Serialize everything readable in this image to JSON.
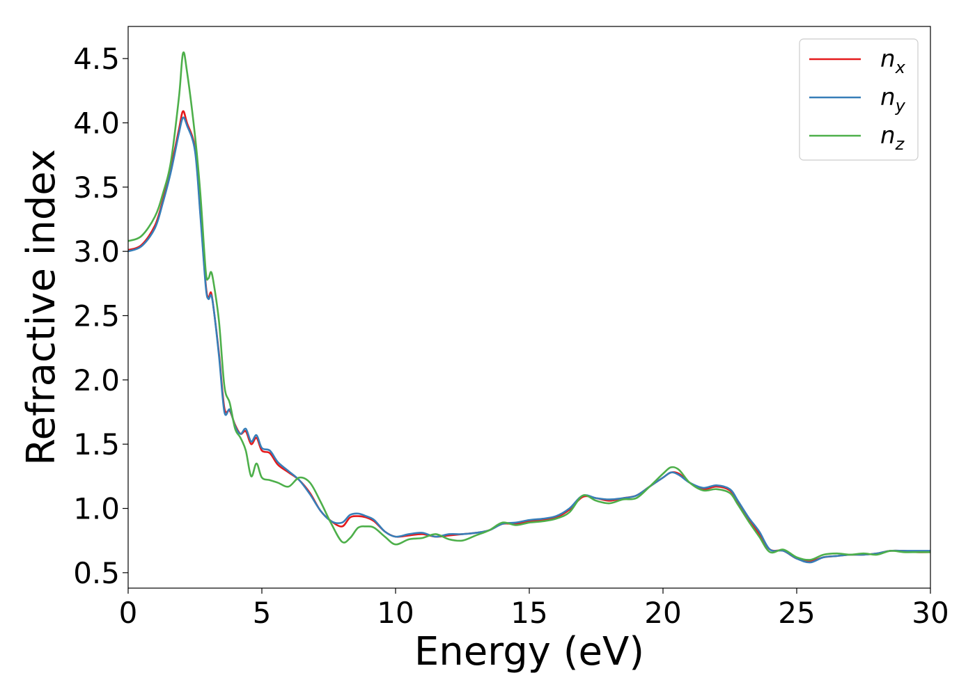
{
  "chart_data": {
    "type": "line",
    "xlabel": "Energy (eV)",
    "ylabel": "Refractive index",
    "xlim": [
      0,
      30
    ],
    "ylim": [
      0.38,
      4.75
    ],
    "xticks": [
      0,
      5,
      10,
      15,
      20,
      25,
      30
    ],
    "xtick_labels": [
      "0",
      "5",
      "10",
      "15",
      "20",
      "25",
      "30"
    ],
    "yticks": [
      0.5,
      1.0,
      1.5,
      2.0,
      2.5,
      3.0,
      3.5,
      4.0,
      4.5
    ],
    "ytick_labels": [
      "0.5",
      "1.0",
      "1.5",
      "2.0",
      "2.5",
      "3.0",
      "3.5",
      "4.0",
      "4.5"
    ],
    "grid": false,
    "legend_position": "top-right",
    "series": [
      {
        "name": "n_x",
        "label_main": "n",
        "label_sub": "x",
        "color": "#e41a1c",
        "x": [
          0,
          0.5,
          1.0,
          1.3,
          1.6,
          1.9,
          2.05,
          2.2,
          2.5,
          2.7,
          2.9,
          3.0,
          3.1,
          3.2,
          3.4,
          3.6,
          3.8,
          4.0,
          4.2,
          4.4,
          4.6,
          4.8,
          5.0,
          5.3,
          5.6,
          6.0,
          6.4,
          6.8,
          7.2,
          7.6,
          8.0,
          8.3,
          8.6,
          8.9,
          9.2,
          9.6,
          10.0,
          10.5,
          11.0,
          11.5,
          12.0,
          12.5,
          13.0,
          13.5,
          14.0,
          14.5,
          15.0,
          15.5,
          16.0,
          16.5,
          17.0,
          17.5,
          18.0,
          18.5,
          19.0,
          19.5,
          20.0,
          20.3,
          20.6,
          21.0,
          21.5,
          22.0,
          22.5,
          22.8,
          23.2,
          23.6,
          24.0,
          24.5,
          25.0,
          25.5,
          26.0,
          26.5,
          27.0,
          27.5,
          28.0,
          28.5,
          29.0,
          29.5,
          30.0
        ],
        "y": [
          3.01,
          3.05,
          3.2,
          3.4,
          3.65,
          3.95,
          4.09,
          4.0,
          3.8,
          3.3,
          2.75,
          2.64,
          2.68,
          2.55,
          2.2,
          1.78,
          1.76,
          1.65,
          1.58,
          1.6,
          1.5,
          1.55,
          1.45,
          1.43,
          1.34,
          1.28,
          1.22,
          1.12,
          0.98,
          0.9,
          0.86,
          0.93,
          0.94,
          0.93,
          0.9,
          0.82,
          0.78,
          0.79,
          0.8,
          0.78,
          0.79,
          0.8,
          0.81,
          0.83,
          0.88,
          0.88,
          0.9,
          0.91,
          0.93,
          0.99,
          1.09,
          1.08,
          1.06,
          1.08,
          1.1,
          1.17,
          1.24,
          1.28,
          1.27,
          1.2,
          1.15,
          1.17,
          1.14,
          1.05,
          0.92,
          0.8,
          0.68,
          0.67,
          0.61,
          0.59,
          0.62,
          0.63,
          0.64,
          0.64,
          0.65,
          0.67,
          0.67,
          0.66,
          0.66
        ]
      },
      {
        "name": "n_y",
        "label_main": "n",
        "label_sub": "y",
        "color": "#377eb8",
        "x": [
          0,
          0.5,
          1.0,
          1.3,
          1.6,
          1.9,
          2.05,
          2.2,
          2.5,
          2.7,
          2.9,
          3.0,
          3.1,
          3.2,
          3.4,
          3.6,
          3.8,
          4.0,
          4.2,
          4.4,
          4.6,
          4.8,
          5.0,
          5.3,
          5.6,
          6.0,
          6.4,
          6.8,
          7.2,
          7.6,
          8.0,
          8.3,
          8.6,
          8.9,
          9.2,
          9.6,
          10.0,
          10.5,
          11.0,
          11.5,
          12.0,
          12.5,
          13.0,
          13.5,
          14.0,
          14.5,
          15.0,
          15.5,
          16.0,
          16.5,
          17.0,
          17.5,
          18.0,
          18.5,
          19.0,
          19.5,
          20.0,
          20.3,
          20.6,
          21.0,
          21.5,
          22.0,
          22.5,
          22.8,
          23.2,
          23.6,
          24.0,
          24.5,
          25.0,
          25.5,
          26.0,
          26.5,
          27.0,
          27.5,
          28.0,
          28.5,
          29.0,
          29.5,
          30.0
        ],
        "y": [
          3.0,
          3.04,
          3.18,
          3.38,
          3.62,
          3.92,
          4.04,
          3.98,
          3.78,
          3.28,
          2.73,
          2.63,
          2.66,
          2.55,
          2.18,
          1.75,
          1.77,
          1.64,
          1.58,
          1.62,
          1.52,
          1.57,
          1.47,
          1.45,
          1.36,
          1.29,
          1.22,
          1.11,
          0.98,
          0.9,
          0.89,
          0.95,
          0.96,
          0.94,
          0.91,
          0.82,
          0.78,
          0.8,
          0.81,
          0.78,
          0.8,
          0.8,
          0.81,
          0.83,
          0.88,
          0.89,
          0.91,
          0.92,
          0.94,
          1.0,
          1.1,
          1.08,
          1.07,
          1.08,
          1.1,
          1.17,
          1.24,
          1.28,
          1.26,
          1.2,
          1.16,
          1.18,
          1.15,
          1.06,
          0.93,
          0.82,
          0.68,
          0.67,
          0.61,
          0.58,
          0.62,
          0.63,
          0.64,
          0.64,
          0.65,
          0.67,
          0.67,
          0.67,
          0.67
        ]
      },
      {
        "name": "n_z",
        "label_main": "n",
        "label_sub": "z",
        "color": "#4daf4a",
        "x": [
          0,
          0.5,
          1.0,
          1.3,
          1.6,
          1.9,
          2.05,
          2.2,
          2.5,
          2.7,
          2.9,
          3.0,
          3.1,
          3.2,
          3.4,
          3.6,
          3.8,
          4.0,
          4.2,
          4.4,
          4.6,
          4.8,
          5.0,
          5.3,
          5.6,
          6.0,
          6.4,
          6.8,
          7.2,
          7.6,
          8.0,
          8.3,
          8.6,
          8.9,
          9.2,
          9.6,
          10.0,
          10.5,
          11.0,
          11.5,
          12.0,
          12.5,
          13.0,
          13.5,
          14.0,
          14.5,
          15.0,
          15.5,
          16.0,
          16.5,
          17.0,
          17.5,
          18.0,
          18.5,
          19.0,
          19.5,
          20.0,
          20.3,
          20.6,
          21.0,
          21.5,
          22.0,
          22.5,
          22.8,
          23.2,
          23.6,
          24.0,
          24.5,
          25.0,
          25.5,
          26.0,
          26.5,
          27.0,
          27.5,
          28.0,
          28.5,
          29.0,
          29.5,
          30.0
        ],
        "y": [
          3.08,
          3.12,
          3.27,
          3.45,
          3.7,
          4.2,
          4.54,
          4.4,
          3.9,
          3.45,
          2.85,
          2.79,
          2.84,
          2.75,
          2.45,
          1.95,
          1.82,
          1.62,
          1.55,
          1.45,
          1.25,
          1.35,
          1.24,
          1.22,
          1.2,
          1.17,
          1.24,
          1.2,
          1.05,
          0.88,
          0.74,
          0.77,
          0.85,
          0.86,
          0.85,
          0.78,
          0.72,
          0.76,
          0.77,
          0.8,
          0.76,
          0.75,
          0.79,
          0.83,
          0.89,
          0.87,
          0.89,
          0.9,
          0.92,
          0.97,
          1.1,
          1.06,
          1.04,
          1.07,
          1.08,
          1.17,
          1.27,
          1.32,
          1.3,
          1.2,
          1.14,
          1.15,
          1.12,
          1.03,
          0.9,
          0.78,
          0.66,
          0.68,
          0.62,
          0.6,
          0.64,
          0.65,
          0.64,
          0.65,
          0.64,
          0.67,
          0.66,
          0.66,
          0.66
        ]
      }
    ]
  }
}
